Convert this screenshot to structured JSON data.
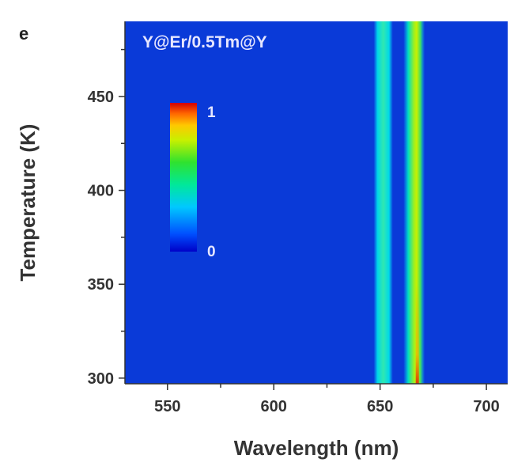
{
  "chart_data": {
    "type": "heatmap",
    "panel_label": "e",
    "title": "Y@Er/0.5Tm@Y",
    "xlabel": "Wavelength (nm)",
    "ylabel": "Temperature (K)",
    "xlim": [
      530,
      710
    ],
    "ylim": [
      297,
      490
    ],
    "x_ticks": [
      550,
      600,
      650,
      700
    ],
    "y_ticks": [
      300,
      350,
      400,
      450
    ],
    "colormap": [
      "#0000c8",
      "#0050ff",
      "#00c8ff",
      "#00e89a",
      "#2fe22f",
      "#c8f000",
      "#ffc800",
      "#ff6400",
      "#d20000"
    ],
    "background_color": "#0a3ad8",
    "colorbar": {
      "min_label": "0",
      "max_label": "1",
      "min": 0,
      "max": 1
    },
    "emission_bands": [
      {
        "wavelength_start": 647,
        "wavelength_end": 656,
        "center": 651.5,
        "intensity": 0.45
      },
      {
        "wavelength_start": 661,
        "wavelength_end": 671,
        "center": 667.5,
        "intensity": 0.72
      }
    ]
  }
}
